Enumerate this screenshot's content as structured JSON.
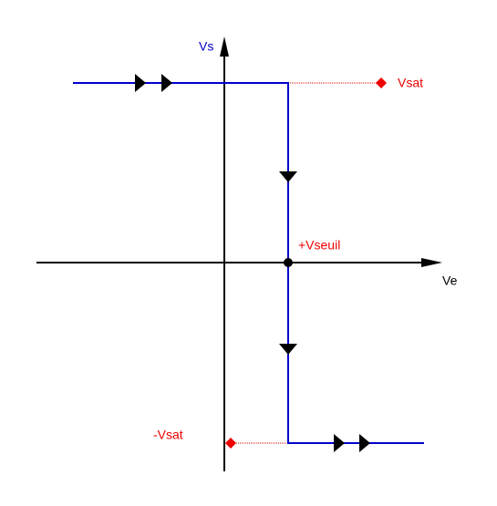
{
  "labels": {
    "y_axis": "Vs",
    "x_axis": "Ve",
    "vsat": "Vsat",
    "vseuil": "+Vseuil",
    "neg_vsat": "-Vsat"
  }
}
